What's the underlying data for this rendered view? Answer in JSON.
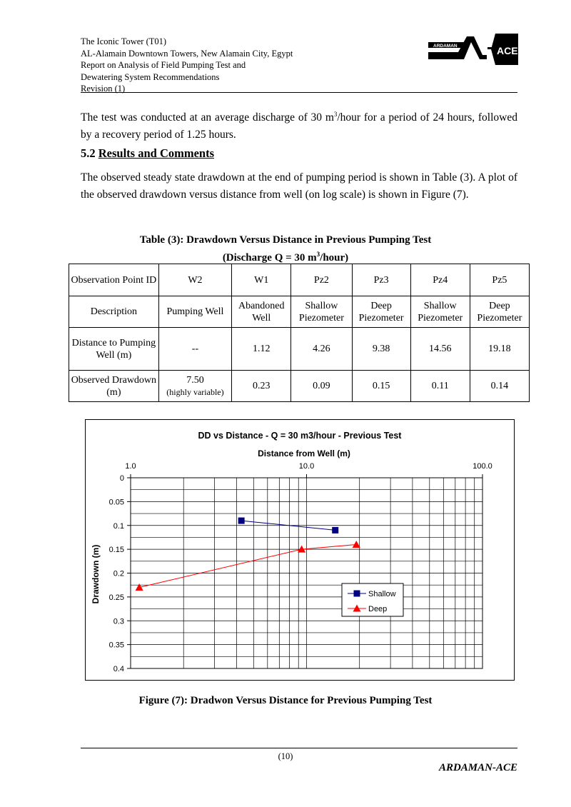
{
  "header": {
    "lines": [
      "The Iconic Tower (T01)",
      "AL-Alamain Downtown Towers, New Alamain City, Egypt",
      "Report on Analysis of Field Pumping Test and",
      "Dewatering System Recommendations",
      "Revision (1)"
    ],
    "logo_text_1": "ARDAMAN",
    "logo_text_2": "ACE"
  },
  "intro": {
    "pre": "The test was conducted at an average discharge of 30 m",
    "sup": "3",
    "post": "/hour for a period of 24 hours, followed by a recovery period of 1.25 hours."
  },
  "section": {
    "number": "5.2",
    "title": "Results and Comments"
  },
  "results_text": "The observed steady state drawdown at the end of pumping period is shown in Table (3). A plot of the observed drawdown versus distance from well (on log scale) is shown in Figure (7).",
  "table": {
    "caption_line1": "Table (3): Drawdown Versus Distance in Previous Pumping Test",
    "caption_line2_pre": "(Discharge Q = 30 m",
    "caption_line2_sup": "3",
    "caption_line2_post": "/hour)",
    "rows": [
      {
        "label": "Observation Point ID",
        "cells": [
          "W2",
          "W1",
          "Pz2",
          "Pz3",
          "Pz4",
          "Pz5"
        ]
      },
      {
        "label": "Description",
        "cells": [
          "Pumping Well",
          "Abandoned Well",
          "Shallow Piezometer",
          "Deep Piezometer",
          "Shallow Piezometer",
          "Deep Piezometer"
        ]
      },
      {
        "label": "Distance to Pumping Well (m)",
        "cells": [
          "--",
          "1.12",
          "4.26",
          "9.38",
          "14.56",
          "19.18"
        ]
      },
      {
        "label": "Observed Drawdown (m)",
        "cells": [
          "7.50",
          "0.23",
          "0.09",
          "0.15",
          "0.11",
          "0.14"
        ],
        "note": "(highly variable)"
      }
    ]
  },
  "chart_data": {
    "type": "line",
    "title": "DD vs Distance - Q = 30 m3/hour - Previous Test",
    "xlabel": "Distance from Well (m)",
    "ylabel": "Drawdown (m)",
    "x_scale": "log",
    "xlim": [
      1.0,
      100.0
    ],
    "x_ticks": [
      "1.0",
      "10.0",
      "100.0"
    ],
    "ylim": [
      0,
      0.4
    ],
    "y_inverted": true,
    "y_ticks": [
      "0",
      "0.05",
      "0.1",
      "0.15",
      "0.2",
      "0.25",
      "0.3",
      "0.35",
      "0.4"
    ],
    "grid": true,
    "legend_position": "lower-right",
    "series": [
      {
        "name": "Shallow",
        "color": "#000080",
        "marker": "square",
        "x": [
          4.26,
          14.56
        ],
        "y": [
          0.09,
          0.11
        ]
      },
      {
        "name": "Deep",
        "color": "#ff0000",
        "marker": "triangle",
        "x": [
          1.12,
          9.38,
          19.18
        ],
        "y": [
          0.23,
          0.15,
          0.14
        ]
      }
    ]
  },
  "figure_caption": "Figure (7): Dradwon Versus Distance for Previous Pumping Test",
  "footer": {
    "page": "(10)",
    "company": "ARDAMAN-ACE"
  }
}
